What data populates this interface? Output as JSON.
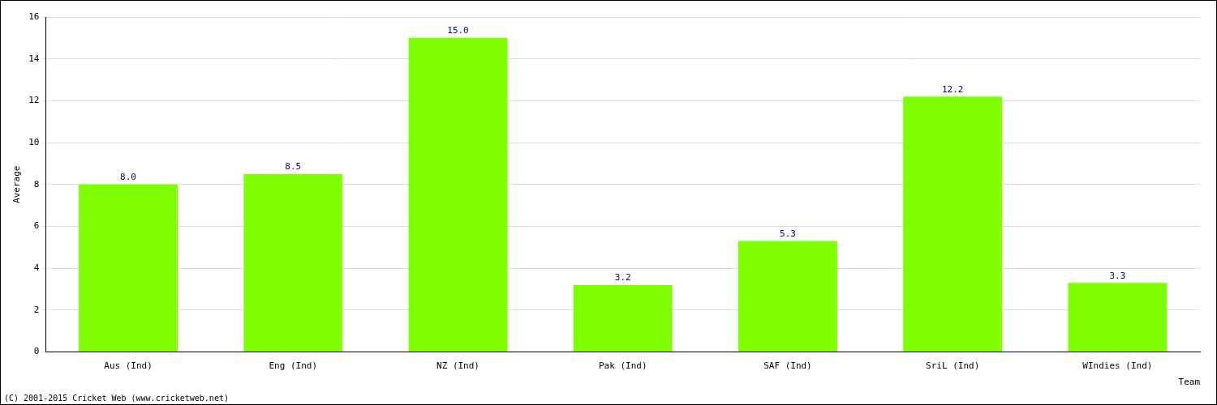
{
  "chart_data": {
    "type": "bar",
    "x_label": "Team",
    "y_label": "Average",
    "categories": [
      "Aus (Ind)",
      "Eng (Ind)",
      "NZ (Ind)",
      "Pak (Ind)",
      "SAF (Ind)",
      "SriL (Ind)",
      "WIndies (Ind)"
    ],
    "values": [
      8.0,
      8.5,
      15.0,
      3.2,
      5.3,
      12.2,
      3.3
    ],
    "value_labels": [
      "8.0",
      "8.5",
      "15.0",
      "3.2",
      "5.3",
      "12.2",
      "3.3"
    ],
    "data_labels": true,
    "color": "#80ff00",
    "ylim": [
      0,
      16
    ],
    "yticks": [
      0,
      2,
      4,
      6,
      8,
      10,
      12,
      14,
      16
    ],
    "grid": true,
    "annotations": [
      "(C) 2001-2015 Cricket Web (www.cricketweb.net)"
    ]
  }
}
